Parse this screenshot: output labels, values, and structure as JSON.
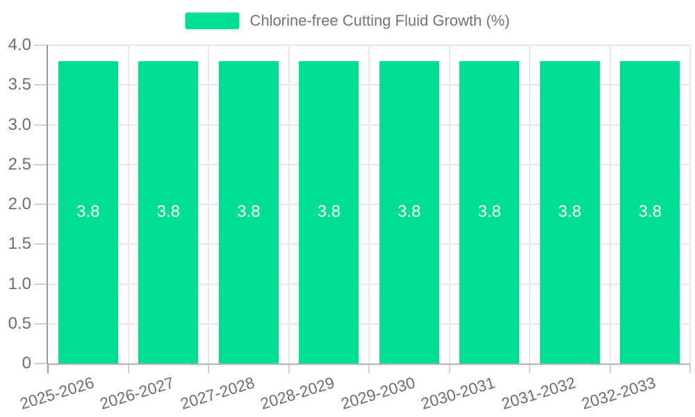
{
  "chart_data": {
    "type": "bar",
    "title": "Chlorine-free Cutting Fluid Growth (%)",
    "legend": [
      "Chlorine-free Cutting Fluid Growth (%)"
    ],
    "legend_position": "top-center",
    "categories": [
      "2025-2026",
      "2026-2027",
      "2027-2028",
      "2028-2029",
      "2029-2030",
      "2030-2031",
      "2031-2032",
      "2032-2033"
    ],
    "series": [
      {
        "name": "Chlorine-free Cutting Fluid Growth (%)",
        "values": [
          3.8,
          3.8,
          3.8,
          3.8,
          3.8,
          3.8,
          3.8,
          3.8
        ]
      }
    ],
    "bar_value_labels": [
      "3.8",
      "3.8",
      "3.8",
      "3.8",
      "3.8",
      "3.8",
      "3.8",
      "3.8"
    ],
    "xlabel": "",
    "ylabel": "",
    "ylim": [
      0,
      4
    ],
    "y_tick_labels": [
      "0",
      "0.5",
      "1.0",
      "1.5",
      "2.0",
      "2.5",
      "3.0",
      "3.5",
      "4.0"
    ],
    "grid": true
  },
  "colors": {
    "bar": "#00DE96",
    "bar_label": "#FFFFFF",
    "grid_line": "#E7E7E7",
    "tick_line": "#CFCFCF",
    "y_axis_line": "#999999",
    "x_axis_line": "#B3B3B3",
    "axis_label": "#6E6E6E",
    "legend_text": "#737373",
    "background": "#FFFFFF"
  }
}
